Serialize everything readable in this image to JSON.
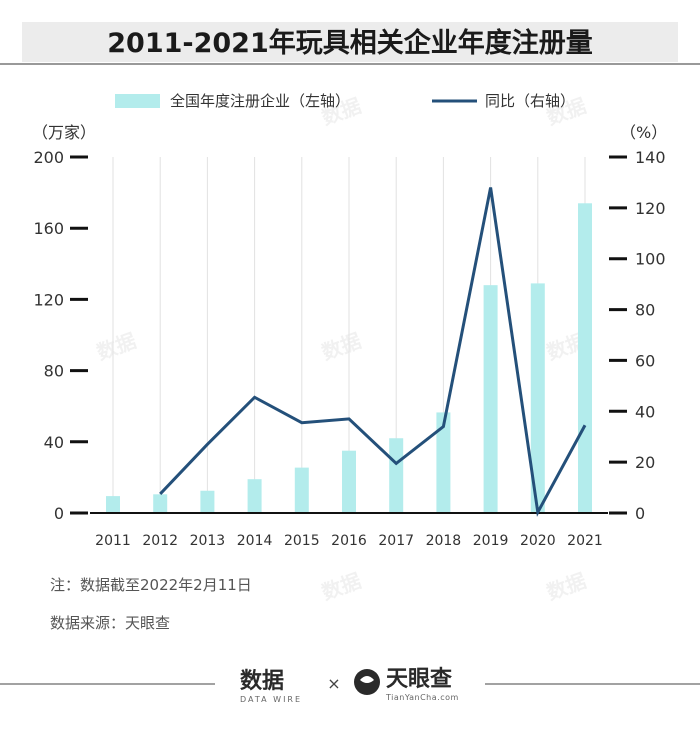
{
  "chart_data": {
    "type": "bar+line",
    "title": "2011-2021年玩具相关企业年度注册量",
    "categories": [
      "2011",
      "2012",
      "2013",
      "2014",
      "2015",
      "2016",
      "2017",
      "2018",
      "2019",
      "2020",
      "2021"
    ],
    "series": [
      {
        "name": "全国年度注册企业（左轴）",
        "type": "bar",
        "axis": "left",
        "color": "#b3ecec",
        "values": [
          9.5,
          10.5,
          12.5,
          19,
          25.5,
          35,
          42,
          56.5,
          128,
          129,
          174
        ]
      },
      {
        "name": "同比（右轴）",
        "type": "line",
        "axis": "right",
        "color": "#24507a",
        "values": [
          null,
          7.5,
          27,
          45.5,
          35.5,
          37,
          19.5,
          34,
          128,
          0.3,
          34.5
        ]
      }
    ],
    "left_axis": {
      "unit": "（万家）",
      "min": 0,
      "max": 200,
      "ticks": [
        0,
        40,
        80,
        120,
        160,
        200
      ]
    },
    "right_axis": {
      "unit": "（%）",
      "min": 0,
      "max": 140,
      "ticks": [
        0,
        20,
        40,
        60,
        80,
        100,
        120,
        140
      ]
    },
    "grid": "vertical",
    "legend_position": "top"
  },
  "notes": {
    "note": "注：数据截至2022年2月11日",
    "source": "数据来源：天眼查"
  },
  "footer": {
    "brand_left": "数据",
    "brand_left_sub": "DATA WIRE",
    "separator": "×",
    "brand_right": "天眼查",
    "brand_right_sub": "TianYanCha.com"
  },
  "colors": {
    "header_bg": "#ececec",
    "axis": "#111111",
    "grid": "#e2e2e2"
  }
}
